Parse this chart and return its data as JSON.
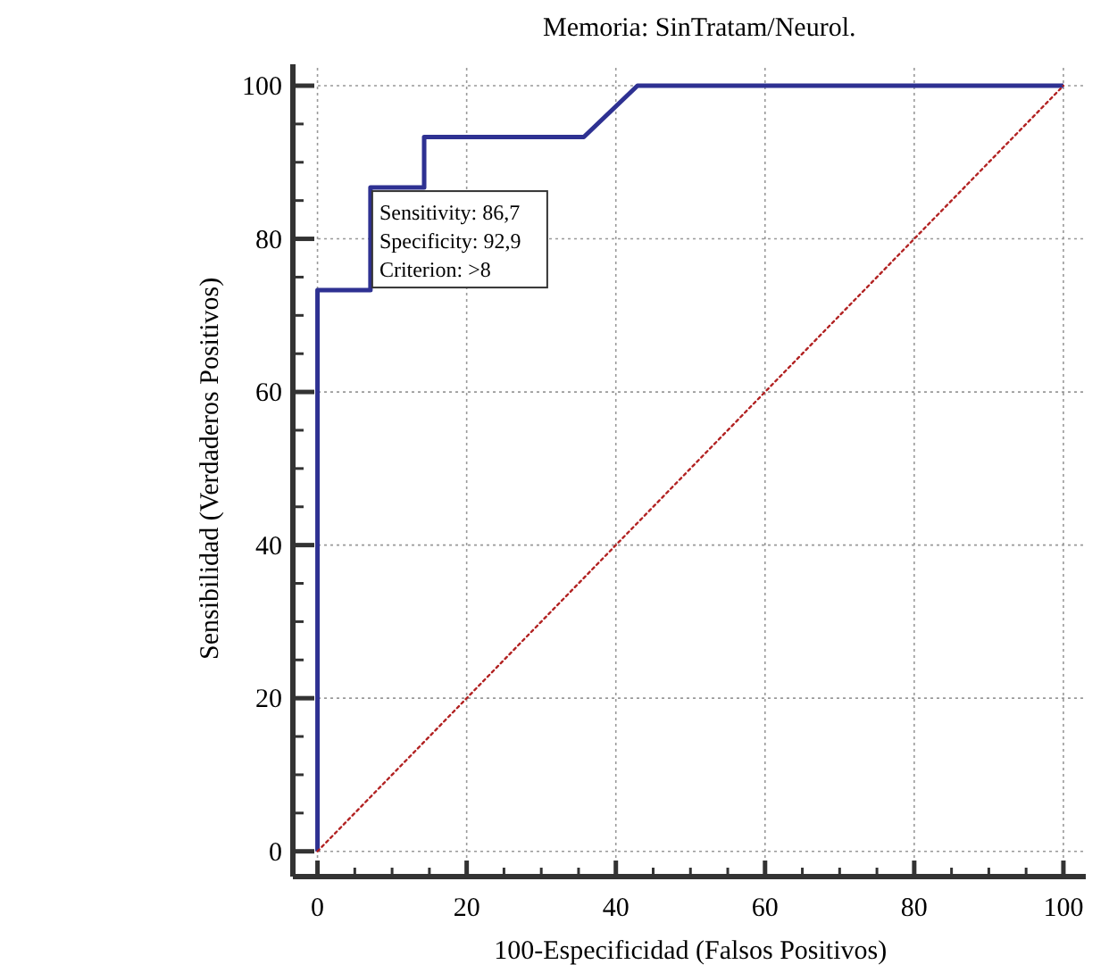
{
  "chart_data": {
    "type": "line",
    "title": "Memoria: SinTratam/Neurol.",
    "xlabel": "100-Especificidad (Falsos Positivos)",
    "ylabel": "Sensibilidad (Verdaderos Positivos)",
    "xlim": [
      -3.3,
      103
    ],
    "ylim": [
      -3.3,
      102.8
    ],
    "xticks": [
      0,
      {
        "value": 5,
        "label": null
      },
      {
        "value": 10,
        "label": null
      },
      {
        "value": 15,
        "label": null
      },
      20,
      {
        "value": 25,
        "label": null
      },
      {
        "value": 30,
        "label": null
      },
      {
        "value": 35,
        "label": null
      },
      40,
      {
        "value": 45,
        "label": null
      },
      {
        "value": 50,
        "label": null
      },
      {
        "value": 55,
        "label": null
      },
      60,
      {
        "value": 65,
        "label": null
      },
      {
        "value": 70,
        "label": null
      },
      {
        "value": 75,
        "label": null
      },
      80,
      {
        "value": 85,
        "label": null
      },
      {
        "value": 90,
        "label": null
      },
      {
        "value": 95,
        "label": null
      },
      100
    ],
    "yticks": [
      0,
      {
        "value": 5,
        "label": null
      },
      {
        "value": 10,
        "label": null
      },
      {
        "value": 15,
        "label": null
      },
      20,
      {
        "value": 25,
        "label": null
      },
      {
        "value": 30,
        "label": null
      },
      {
        "value": 35,
        "label": null
      },
      40,
      {
        "value": 45,
        "label": null
      },
      {
        "value": 50,
        "label": null
      },
      {
        "value": 55,
        "label": null
      },
      60,
      {
        "value": 65,
        "label": null
      },
      {
        "value": 70,
        "label": null
      },
      {
        "value": 75,
        "label": null
      },
      80,
      {
        "value": 85,
        "label": null
      },
      {
        "value": 90,
        "label": null
      },
      {
        "value": 95,
        "label": null
      },
      100
    ],
    "grid": true,
    "marker": "none",
    "series": [
      {
        "color": "#2e3192",
        "line_style": "solid",
        "x": [
          0,
          0,
          7.1,
          7.1,
          14.3,
          14.3,
          35.7,
          42.9,
          100
        ],
        "values": [
          0,
          73.3,
          73.3,
          86.7,
          86.7,
          93.3,
          93.3,
          100,
          100
        ]
      },
      {
        "color": "#b22222",
        "line_style": "dotted",
        "x": [
          0,
          100
        ],
        "values": [
          0,
          100
        ]
      }
    ],
    "annotations": [
      {
        "text": "Sensitivity: 86,7\nSpecificity: 92,9\nCriterion: >8",
        "x": 7.1,
        "y": 86.7
      }
    ]
  }
}
